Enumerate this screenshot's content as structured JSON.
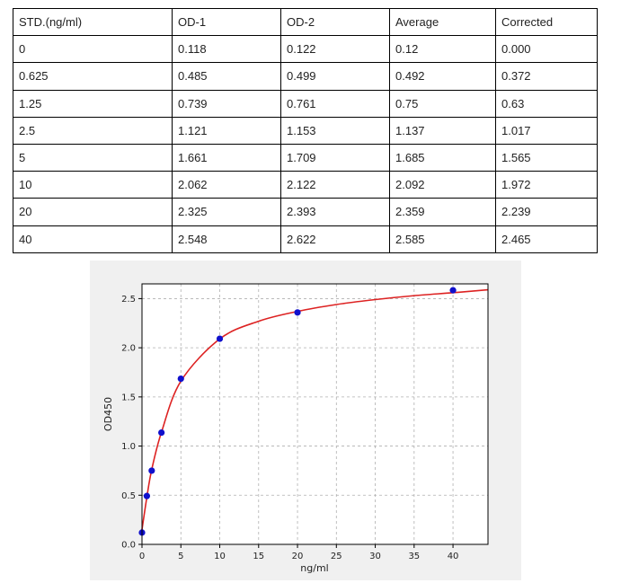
{
  "table": {
    "headers": [
      "STD.(ng/ml)",
      "OD-1",
      "OD-2",
      "Average",
      "Corrected"
    ],
    "rows": [
      [
        "0",
        "0.118",
        "0.122",
        "0.12",
        "0.000"
      ],
      [
        "0.625",
        "0.485",
        "0.499",
        "0.492",
        "0.372"
      ],
      [
        "1.25",
        "0.739",
        "0.761",
        "0.75",
        "0.63"
      ],
      [
        "2.5",
        "1.121",
        "1.153",
        "1.137",
        "1.017"
      ],
      [
        "5",
        "1.661",
        "1.709",
        "1.685",
        "1.565"
      ],
      [
        "10",
        "2.062",
        "2.122",
        "2.092",
        "1.972"
      ],
      [
        "20",
        "2.325",
        "2.393",
        "2.359",
        "2.239"
      ],
      [
        "40",
        "2.548",
        "2.622",
        "2.585",
        "2.465"
      ]
    ]
  },
  "chart_data": {
    "type": "scatter",
    "xlabel": "ng/ml",
    "ylabel": "OD450",
    "xlim": [
      0,
      44.5
    ],
    "ylim": [
      0,
      2.65
    ],
    "xticks": [
      0,
      5,
      10,
      15,
      20,
      25,
      30,
      35,
      40
    ],
    "yticks": [
      0.0,
      0.5,
      1.0,
      1.5,
      2.0,
      2.5
    ],
    "grid": true,
    "series": [
      {
        "kind": "points",
        "x": [
          0,
          0.625,
          1.25,
          2.5,
          5,
          10,
          20,
          40
        ],
        "y": [
          0.12,
          0.492,
          0.75,
          1.137,
          1.685,
          2.092,
          2.359,
          2.585
        ],
        "color": "#1010cc"
      },
      {
        "kind": "fit-curve",
        "x": [
          0,
          0.625,
          1.25,
          2.5,
          5,
          10,
          15,
          20,
          25,
          30,
          35,
          40,
          44.5
        ],
        "y": [
          0.15,
          0.48,
          0.76,
          1.14,
          1.66,
          2.09,
          2.27,
          2.37,
          2.44,
          2.49,
          2.53,
          2.56,
          2.59
        ],
        "color": "#dd2222"
      }
    ]
  }
}
